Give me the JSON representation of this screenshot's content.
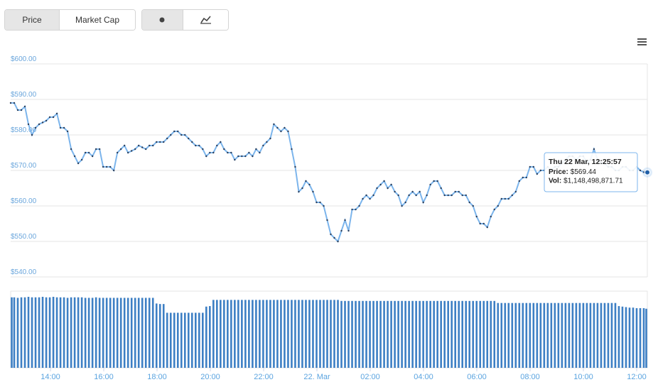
{
  "controls": {
    "buttons": [
      "Price",
      "Market Cap"
    ]
  },
  "chart_data": {
    "type": "line",
    "x_labels": [
      "14:00",
      "16:00",
      "18:00",
      "20:00",
      "22:00",
      "22. Mar",
      "02:00",
      "04:00",
      "06:00",
      "08:00",
      "10:00",
      "12:00"
    ],
    "ylim": [
      540,
      600
    ],
    "yticks": [
      {
        "value": 540,
        "label": "$540.00"
      },
      {
        "value": 550,
        "label": "$550.00"
      },
      {
        "value": 560,
        "label": "$560.00"
      },
      {
        "value": 570,
        "label": "$570.00"
      },
      {
        "value": 580,
        "label": "$580.00"
      },
      {
        "value": 590,
        "label": "$590.00"
      },
      {
        "value": 600,
        "label": "$600.00"
      }
    ],
    "grid": true,
    "series": [
      {
        "color": "#7cb5ec",
        "values": [
          589,
          589,
          587,
          587,
          588,
          583,
          580,
          582,
          583,
          583.5,
          584,
          585,
          585,
          586,
          582,
          582,
          581,
          576,
          574,
          572,
          573,
          575,
          575,
          574,
          576,
          576,
          571,
          571,
          571,
          570,
          575,
          576,
          577,
          575,
          575.5,
          576,
          577,
          576.5,
          576,
          577,
          577,
          578,
          578,
          578,
          579,
          580,
          581,
          581,
          580,
          580,
          579,
          578,
          577,
          577,
          576,
          574,
          575,
          575,
          577,
          578,
          576,
          575,
          575,
          573,
          574,
          574,
          574,
          575,
          574,
          576,
          575,
          577,
          578,
          579,
          583,
          582,
          581,
          582,
          581,
          576,
          571,
          564,
          565,
          567,
          566,
          564,
          561,
          561,
          560,
          556,
          552,
          551,
          550,
          553,
          556,
          553,
          559,
          559,
          560,
          562,
          563,
          562,
          563,
          565,
          566,
          567,
          565,
          566,
          564,
          563,
          560,
          561,
          563,
          564,
          563,
          564,
          561,
          563,
          566,
          567,
          567,
          565,
          563,
          563,
          563,
          564,
          564,
          563,
          563,
          561,
          560,
          557,
          555,
          555,
          554,
          557,
          559,
          560,
          562,
          562,
          562,
          563,
          564,
          567,
          568,
          568,
          571,
          571,
          569,
          570,
          570,
          571,
          570,
          571,
          571,
          572,
          573,
          574,
          574,
          573,
          574,
          574,
          572,
          573,
          576,
          573,
          572,
          572,
          571,
          571,
          570,
          570,
          571,
          571,
          570,
          570,
          571,
          570,
          569.5,
          569.44
        ]
      }
    ],
    "volume": {
      "color": "#3d7fc4",
      "values": [
        1370000000.0,
        1370000000.0,
        1360000000.0,
        1370000000.0,
        1370000000.0,
        1380000000.0,
        1370000000.0,
        1370000000.0,
        1370000000.0,
        1380000000.0,
        1370000000.0,
        1370000000.0,
        1380000000.0,
        1370000000.0,
        1370000000.0,
        1370000000.0,
        1360000000.0,
        1370000000.0,
        1370000000.0,
        1370000000.0,
        1370000000.0,
        1360000000.0,
        1360000000.0,
        1360000000.0,
        1370000000.0,
        1360000000.0,
        1360000000.0,
        1360000000.0,
        1360000000.0,
        1360000000.0,
        1360000000.0,
        1360000000.0,
        1360000000.0,
        1360000000.0,
        1360000000.0,
        1360000000.0,
        1360000000.0,
        1360000000.0,
        1360000000.0,
        1360000000.0,
        1360000000.0,
        1250000000.0,
        1240000000.0,
        1240000000.0,
        1070000000.0,
        1070000000.0,
        1070000000.0,
        1070000000.0,
        1070000000.0,
        1070000000.0,
        1070000000.0,
        1070000000.0,
        1070000000.0,
        1070000000.0,
        1070000000.0,
        1190000000.0,
        1200000000.0,
        1320000000.0,
        1320000000.0,
        1320000000.0,
        1320000000.0,
        1320000000.0,
        1320000000.0,
        1320000000.0,
        1320000000.0,
        1320000000.0,
        1320000000.0,
        1320000000.0,
        1320000000.0,
        1320000000.0,
        1320000000.0,
        1320000000.0,
        1320000000.0,
        1320000000.0,
        1320000000.0,
        1320000000.0,
        1320000000.0,
        1320000000.0,
        1320000000.0,
        1320000000.0,
        1320000000.0,
        1320000000.0,
        1320000000.0,
        1320000000.0,
        1320000000.0,
        1320000000.0,
        1320000000.0,
        1320000000.0,
        1320000000.0,
        1320000000.0,
        1320000000.0,
        1320000000.0,
        1320000000.0,
        1300000000.0,
        1300000000.0,
        1300000000.0,
        1300000000.0,
        1300000000.0,
        1300000000.0,
        1300000000.0,
        1300000000.0,
        1300000000.0,
        1300000000.0,
        1300000000.0,
        1300000000.0,
        1300000000.0,
        1300000000.0,
        1300000000.0,
        1300000000.0,
        1300000000.0,
        1300000000.0,
        1300000000.0,
        1300000000.0,
        1300000000.0,
        1300000000.0,
        1300000000.0,
        1300000000.0,
        1300000000.0,
        1300000000.0,
        1300000000.0,
        1300000000.0,
        1300000000.0,
        1300000000.0,
        1300000000.0,
        1300000000.0,
        1300000000.0,
        1300000000.0,
        1300000000.0,
        1300000000.0,
        1300000000.0,
        1300000000.0,
        1300000000.0,
        1300000000.0,
        1300000000.0,
        1300000000.0,
        1300000000.0,
        1300000000.0,
        1260000000.0,
        1260000000.0,
        1260000000.0,
        1260000000.0,
        1260000000.0,
        1260000000.0,
        1260000000.0,
        1260000000.0,
        1260000000.0,
        1260000000.0,
        1260000000.0,
        1260000000.0,
        1260000000.0,
        1260000000.0,
        1260000000.0,
        1260000000.0,
        1260000000.0,
        1260000000.0,
        1260000000.0,
        1260000000.0,
        1260000000.0,
        1260000000.0,
        1260000000.0,
        1260000000.0,
        1260000000.0,
        1260000000.0,
        1260000000.0,
        1260000000.0,
        1260000000.0,
        1260000000.0,
        1260000000.0,
        1260000000.0,
        1260000000.0,
        1260000000.0,
        1200000000.0,
        1190000000.0,
        1180000000.0,
        1170000000.0,
        1170000000.0,
        1160000000.0,
        1160000000.0,
        1160000000.0,
        1148498871.71
      ]
    },
    "tooltip": {
      "title": "Thu 22 Mar, 12:25:57",
      "rows": [
        {
          "label": "Price:",
          "value": "$569.44"
        },
        {
          "label": "Vol:",
          "value": "$1,148,498,871.71"
        }
      ]
    }
  }
}
